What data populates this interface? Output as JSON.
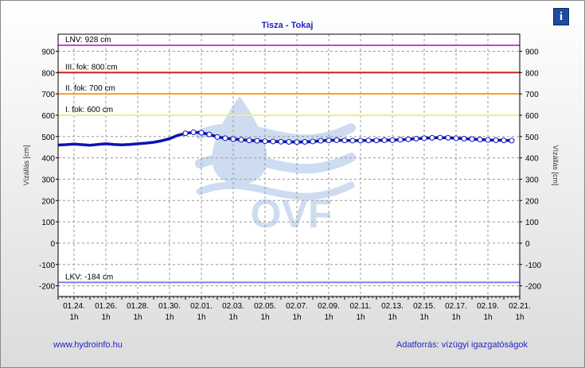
{
  "chart_data": {
    "type": "line",
    "title": "Tisza - Tokaj",
    "ylabel": "Vízállás [cm]",
    "ylabel_right": "Vízállás [cm]",
    "ylim": [
      -250,
      980
    ],
    "yticks": [
      -200,
      -100,
      0,
      100,
      200,
      300,
      400,
      500,
      600,
      700,
      800,
      900
    ],
    "xlim": [
      0,
      29
    ],
    "xticks": [
      {
        "x": 1,
        "label": "01.24.",
        "sub": "1h"
      },
      {
        "x": 3,
        "label": "01.26.",
        "sub": "1h"
      },
      {
        "x": 5,
        "label": "01.28.",
        "sub": "1h"
      },
      {
        "x": 7,
        "label": "01.30.",
        "sub": "1h"
      },
      {
        "x": 9,
        "label": "02.01.",
        "sub": "1h"
      },
      {
        "x": 11,
        "label": "02.03.",
        "sub": "1h"
      },
      {
        "x": 13,
        "label": "02.05.",
        "sub": "1h"
      },
      {
        "x": 15,
        "label": "02.07.",
        "sub": "1h"
      },
      {
        "x": 17,
        "label": "02.09.",
        "sub": "1h"
      },
      {
        "x": 19,
        "label": "02.11.",
        "sub": "1h"
      },
      {
        "x": 21,
        "label": "02.13.",
        "sub": "1h"
      },
      {
        "x": 23,
        "label": "02.15.",
        "sub": "1h"
      },
      {
        "x": 25,
        "label": "02.17.",
        "sub": "1h"
      },
      {
        "x": 27,
        "label": "02.19.",
        "sub": "1h"
      },
      {
        "x": 29,
        "label": "02.21.",
        "sub": "1h"
      }
    ],
    "thresholds": [
      {
        "value": 928,
        "label": "LNV: 928 cm",
        "color": "#d040d0"
      },
      {
        "value": 800,
        "label": "III. fok: 800 cm",
        "color": "#d02020"
      },
      {
        "value": 700,
        "label": "II. fok: 700 cm",
        "color": "#f0a030"
      },
      {
        "value": 600,
        "label": "I. fok: 600 cm",
        "color": "#f0f080"
      },
      {
        "value": -184,
        "label": "LKV: -184 cm",
        "color": "#8080f0"
      }
    ],
    "series": [
      {
        "color": "#0a14b4",
        "x": [
          0,
          0.5,
          1,
          1.5,
          2,
          2.5,
          3,
          3.5,
          4,
          4.5,
          5,
          5.5,
          6,
          6.5,
          7,
          7.5,
          8,
          8.5,
          9,
          9.5,
          10,
          10.5,
          11,
          11.5,
          12,
          12.5,
          13,
          13.5,
          14,
          14.5,
          15,
          15.5,
          16,
          16.5,
          17,
          17.5,
          18,
          18.5,
          19,
          19.5,
          20,
          20.5,
          21,
          21.5,
          22,
          22.5,
          23,
          23.5,
          24,
          24.5,
          25,
          25.5,
          26,
          26.5,
          27,
          27.5,
          28,
          28.5
        ],
        "y": [
          460,
          462,
          465,
          462,
          459,
          463,
          466,
          463,
          461,
          463,
          466,
          469,
          473,
          480,
          490,
          505,
          515,
          520,
          518,
          510,
          498,
          492,
          488,
          485,
          482,
          480,
          478,
          477,
          476,
          475,
          474,
          475,
          477,
          480,
          482,
          483,
          482,
          481,
          481,
          482,
          482,
          483,
          483,
          485,
          487,
          490,
          492,
          494,
          495,
          494,
          492,
          490,
          488,
          486,
          484,
          483,
          482,
          481
        ]
      }
    ],
    "markers": {
      "x": [
        8,
        8.5,
        9,
        9.5,
        10,
        10.5,
        11,
        11.5,
        12,
        12.5,
        13,
        13.5,
        14,
        14.5,
        15,
        15.5,
        16,
        16.5,
        17,
        17.5,
        18,
        18.5,
        19,
        19.5,
        20,
        20.5,
        21,
        21.5,
        22,
        22.5,
        23,
        23.5,
        24,
        24.5,
        25,
        25.5,
        26,
        26.5,
        27,
        27.5,
        28,
        28.5
      ],
      "y": [
        515,
        520,
        518,
        510,
        498,
        492,
        488,
        485,
        482,
        480,
        478,
        477,
        476,
        475,
        474,
        475,
        477,
        480,
        482,
        483,
        482,
        481,
        481,
        482,
        482,
        483,
        483,
        485,
        487,
        490,
        492,
        494,
        495,
        494,
        492,
        490,
        488,
        486,
        484,
        483,
        482,
        481
      ]
    },
    "grid": true,
    "watermark": "OVF"
  },
  "footer": {
    "left": "www.hydroinfo.hu",
    "right": "Adatforrás: vízügyi igazgatóságok"
  },
  "info_icon": "info-icon"
}
